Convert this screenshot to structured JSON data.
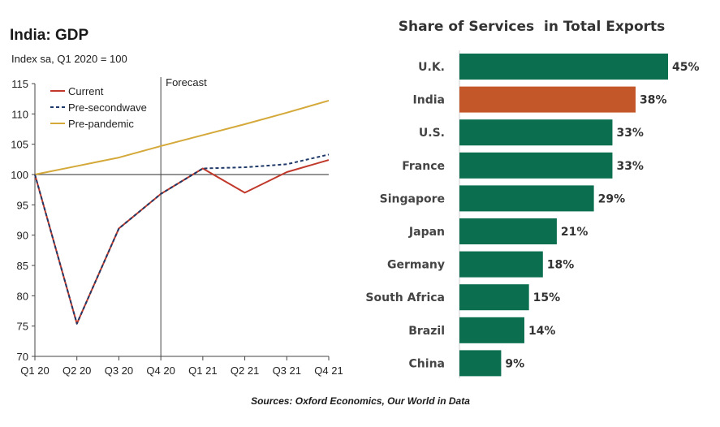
{
  "source_note": "Sources: Oxford Economics, Our World in Data",
  "chart_data": [
    {
      "type": "line",
      "title": "India: GDP",
      "subtitle": "Index sa, Q1 2020 = 100",
      "x": [
        "Q1 20",
        "Q2 20",
        "Q3 20",
        "Q4 20",
        "Q1 21",
        "Q2 21",
        "Q3 21",
        "Q4 21"
      ],
      "ylim": [
        70,
        115
      ],
      "yticks": [
        70,
        75,
        80,
        85,
        90,
        95,
        100,
        105,
        110,
        115
      ],
      "reference_line": 100,
      "forecast_label": "Forecast",
      "forecast_starts_at": "Q4 20",
      "grid": false,
      "legend_position": "top-left",
      "series": [
        {
          "name": "Current",
          "color": "#c0392b",
          "style": "solid",
          "values": [
            100,
            75.4,
            91.1,
            96.8,
            101.0,
            97.0,
            100.4,
            102.4
          ]
        },
        {
          "name": "Pre-secondwave",
          "color": "#1f3a68",
          "style": "dashed",
          "values": [
            100,
            75.4,
            91.1,
            96.8,
            101.0,
            101.2,
            101.7,
            103.3
          ]
        },
        {
          "name": "Pre-pandemic",
          "color": "#d4a93a",
          "style": "solid",
          "values": [
            100,
            101.4,
            102.8,
            104.7,
            106.5,
            108.3,
            110.2,
            112.2
          ]
        }
      ]
    },
    {
      "type": "bar",
      "orientation": "horizontal",
      "title": "Share of Services  in Total Exports",
      "categories": [
        "U.K.",
        "India",
        "U.S.",
        "France",
        "Singapore",
        "Japan",
        "Germany",
        "South Africa",
        "Brazil",
        "China"
      ],
      "values": [
        45,
        38,
        33,
        33,
        29,
        21,
        18,
        15,
        14,
        9
      ],
      "value_labels": [
        "45%",
        "38%",
        "33%",
        "33%",
        "29%",
        "21%",
        "18%",
        "15%",
        "14%",
        "9%"
      ],
      "default_color": "#0a6e4f",
      "highlight_color": "#c4572a",
      "highlight_category": "India",
      "grid": false
    }
  ]
}
